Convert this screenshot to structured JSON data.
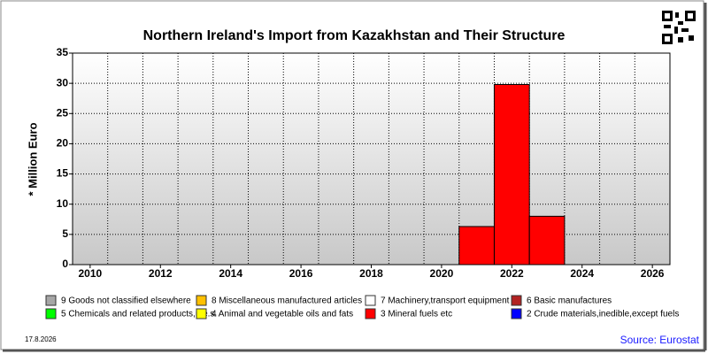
{
  "chart_data": {
    "type": "bar",
    "stacked": true,
    "title": "Northern Ireland's Import from Kazakhstan and Their Structure",
    "y_label": "* Million Euro",
    "date": "17.8.2026",
    "source": "Source: Eurostat",
    "x": [
      2021,
      2022,
      2023
    ],
    "xlim": [
      2009.5,
      2026.5
    ],
    "xticks": [
      2010,
      2012,
      2014,
      2016,
      2018,
      2020,
      2022,
      2024,
      2026
    ],
    "ylim": [
      0,
      35
    ],
    "yticks": [
      0,
      5,
      10,
      15,
      20,
      25,
      30,
      35
    ],
    "grid": true,
    "series": [
      {
        "name": "9 Goods not classified elsewhere",
        "color": "#a6a6a6",
        "values": [
          0,
          0,
          0
        ]
      },
      {
        "name": "8 Miscellaneous manufactured articles",
        "color": "#ffc000",
        "values": [
          0,
          0,
          0
        ]
      },
      {
        "name": "7 Machinery,transport equipment",
        "color": "#ffffff",
        "values": [
          0,
          0,
          0
        ]
      },
      {
        "name": "6 Basic manufactures",
        "color": "#b22222",
        "values": [
          0,
          0,
          0
        ]
      },
      {
        "name": "5 Chemicals and related products,n.e.s.",
        "color": "#00ff00",
        "values": [
          0,
          0,
          0
        ]
      },
      {
        "name": "4 Animal and vegetable oils and fats",
        "color": "#ffff00",
        "values": [
          0,
          0,
          0
        ]
      },
      {
        "name": "3 Mineral fuels etc",
        "color": "#ff0000",
        "values": [
          6.3,
          29.8,
          8.0
        ]
      },
      {
        "name": "2 Crude materials,inedible,except fuels",
        "color": "#0000ff",
        "values": [
          0,
          0,
          0
        ]
      }
    ]
  }
}
